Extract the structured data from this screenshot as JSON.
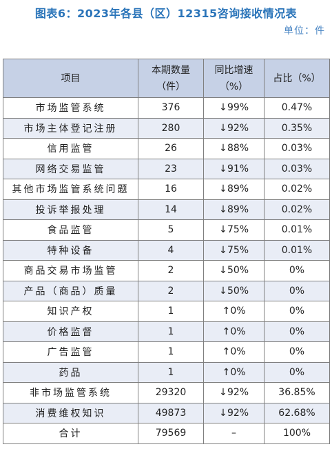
{
  "title": "图表6：2023年各县（区）12315咨询接收情况表",
  "unit": "单位：件",
  "columns": [
    "项目",
    "本期数量（件）",
    "同比增速（%）",
    "占比（%）"
  ],
  "header": {
    "item": "项目",
    "count_l1": "本期数量",
    "count_l2": "（件）",
    "growth_l1": "同比增速",
    "growth_l2": "（%）",
    "share": "占比（%）"
  },
  "rows": [
    {
      "item": "市场监管系统",
      "count": "376",
      "dir": "↓",
      "growth": "99%",
      "share": "0.47%"
    },
    {
      "item": "市场主体登记注册",
      "count": "280",
      "dir": "↓",
      "growth": "92%",
      "share": "0.35%"
    },
    {
      "item": "信用监管",
      "count": "26",
      "dir": "↓",
      "growth": "88%",
      "share": "0.03%"
    },
    {
      "item": "网络交易监管",
      "count": "23",
      "dir": "↓",
      "growth": "91%",
      "share": "0.03%"
    },
    {
      "item": "其他市场监管系统问题",
      "count": "16",
      "dir": "↓",
      "growth": "89%",
      "share": "0.02%"
    },
    {
      "item": "投诉举报处理",
      "count": "14",
      "dir": "↓",
      "growth": "89%",
      "share": "0.02%"
    },
    {
      "item": "食品监管",
      "count": "5",
      "dir": "↓",
      "growth": "75%",
      "share": "0.01%"
    },
    {
      "item": "特种设备",
      "count": "4",
      "dir": "↓",
      "growth": "75%",
      "share": "0.01%"
    },
    {
      "item": "商品交易市场监管",
      "count": "2",
      "dir": "↓",
      "growth": "50%",
      "share": "0%"
    },
    {
      "item": "产品（商品）质量",
      "count": "2",
      "dir": "↓",
      "growth": "50%",
      "share": "0%"
    },
    {
      "item": "知识产权",
      "count": "1",
      "dir": "↑",
      "growth": "0%",
      "share": "0%"
    },
    {
      "item": "价格监督",
      "count": "1",
      "dir": "↑",
      "growth": "0%",
      "share": "0%"
    },
    {
      "item": "广告监管",
      "count": "1",
      "dir": "↑",
      "growth": "0%",
      "share": "0%"
    },
    {
      "item": "药品",
      "count": "1",
      "dir": "↑",
      "growth": "0%",
      "share": "0%"
    },
    {
      "item": "非市场监管系统",
      "count": "29320",
      "dir": "↓",
      "growth": "92%",
      "share": "36.85%"
    },
    {
      "item": "消费维权知识",
      "count": "49873",
      "dir": "↓",
      "growth": "92%",
      "share": "62.68%"
    },
    {
      "item": "合计",
      "count": "79569",
      "dir": "",
      "growth": "–",
      "share": "100%"
    }
  ]
}
